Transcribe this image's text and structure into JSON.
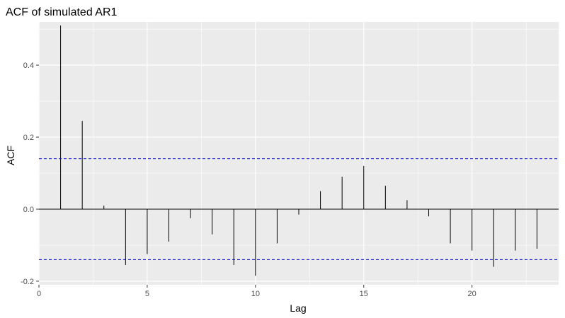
{
  "chart_data": {
    "type": "bar",
    "title": "ACF of simulated AR1",
    "xlabel": "Lag",
    "ylabel": "ACF",
    "xlim": [
      0,
      24
    ],
    "ylim": [
      -0.21,
      0.52
    ],
    "x_ticks": [
      0,
      5,
      10,
      15,
      20
    ],
    "y_ticks": [
      -0.2,
      0.0,
      0.2,
      0.4
    ],
    "y_tick_labels": [
      "-0.2",
      "0.0",
      "0.2",
      "0.4"
    ],
    "grid": true,
    "significance_bounds": [
      0.14,
      -0.14
    ],
    "lags": [
      1,
      2,
      3,
      4,
      5,
      6,
      7,
      8,
      9,
      10,
      11,
      12,
      13,
      14,
      15,
      16,
      17,
      18,
      19,
      20,
      21,
      22,
      23
    ],
    "values": [
      0.51,
      0.245,
      0.01,
      -0.155,
      -0.125,
      -0.09,
      -0.025,
      -0.07,
      -0.155,
      -0.185,
      -0.095,
      -0.015,
      0.05,
      0.09,
      0.12,
      0.065,
      0.025,
      -0.02,
      -0.095,
      -0.115,
      -0.16,
      -0.115,
      -0.11
    ],
    "colors": {
      "panel": "#ebebeb",
      "grid": "#ffffff",
      "bar": "#000000",
      "bound": "#0000cc",
      "tick": "#333333"
    }
  }
}
